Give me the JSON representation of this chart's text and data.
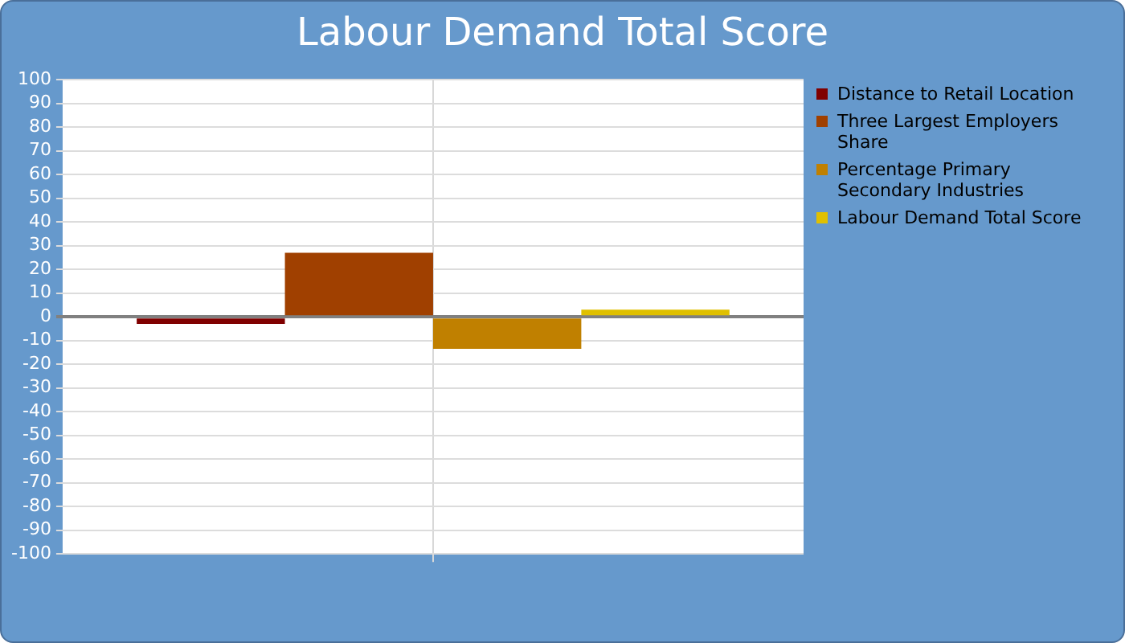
{
  "chart_data": {
    "type": "bar",
    "title": "Labour Demand Total Score",
    "categories": [
      null
    ],
    "series": [
      {
        "name": "Distance to Retail Location",
        "color": "#800000",
        "values": [
          -3
        ]
      },
      {
        "name": "Three Largest Employers Share",
        "color": "#a04000",
        "values": [
          27
        ]
      },
      {
        "name": "Percentage Primary Secondary Industries",
        "color": "#c08000",
        "values": [
          -13.5
        ]
      },
      {
        "name": "Labour Demand Total Score",
        "color": "#e0c000",
        "values": [
          3
        ]
      }
    ],
    "ylim": [
      -100,
      100
    ],
    "yticks": [
      -100,
      -90,
      -80,
      -70,
      -60,
      -50,
      -40,
      -30,
      -20,
      -10,
      0,
      10,
      20,
      30,
      40,
      50,
      60,
      70,
      80,
      90,
      100
    ],
    "grid": true,
    "legend": "right"
  }
}
